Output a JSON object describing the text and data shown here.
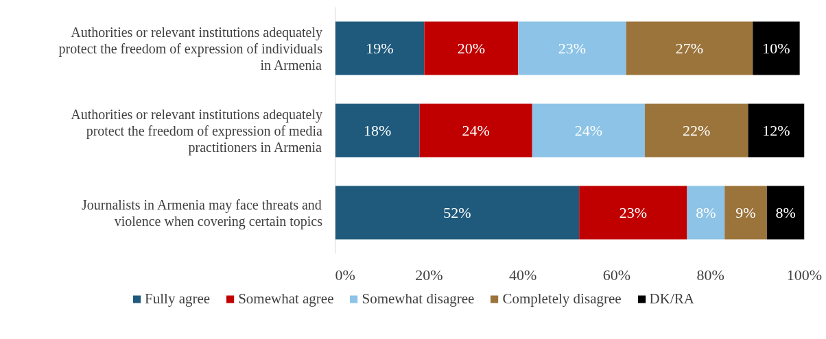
{
  "chart_data": {
    "type": "bar",
    "orientation": "horizontal",
    "stacked": true,
    "categories": [
      "Authorities or relevant institutions adequately protect the freedom of expression of individuals in Armenia",
      "Authorities or relevant institutions adequately protect the freedom of expression of media practitioners in Armenia",
      "Journalists in Armenia may face threats and violence when covering certain topics"
    ],
    "series": [
      {
        "name": "Fully agree",
        "color": "#1f5a7c",
        "values": [
          19,
          18,
          52
        ],
        "value_labels": [
          "19%",
          "18%",
          "52%"
        ]
      },
      {
        "name": "Somewhat agree",
        "color": "#c00000",
        "values": [
          20,
          24,
          23
        ],
        "value_labels": [
          "20%",
          "24%",
          "23%"
        ]
      },
      {
        "name": "Somewhat disagree",
        "color": "#8cc3e6",
        "values": [
          23,
          24,
          8
        ],
        "value_labels": [
          "23%",
          "24%",
          "8%"
        ]
      },
      {
        "name": "Completely disagree",
        "color": "#9b743c",
        "values": [
          27,
          22,
          9
        ],
        "value_labels": [
          "27%",
          "22%",
          "9%"
        ]
      },
      {
        "name": "DK/RA",
        "color": "#000000",
        "values": [
          10,
          12,
          8
        ],
        "value_labels": [
          "10%",
          "12%",
          "8%"
        ]
      }
    ],
    "xlim": [
      0,
      100
    ],
    "xticks": [
      {
        "value": 0,
        "label": "0%"
      },
      {
        "value": 20,
        "label": "20%"
      },
      {
        "value": 40,
        "label": "40%"
      },
      {
        "value": 60,
        "label": "60%"
      },
      {
        "value": 80,
        "label": "80%"
      },
      {
        "value": 100,
        "label": "100%"
      }
    ],
    "grid": false,
    "legend": "bottom"
  }
}
